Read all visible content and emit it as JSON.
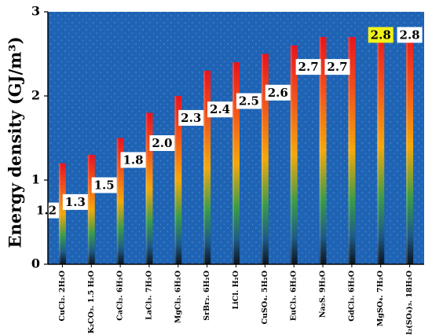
{
  "chart_data": {
    "type": "bar",
    "title": "",
    "xlabel": "",
    "ylabel": "Energy density (GJ/m³)",
    "ylim": [
      0,
      3
    ],
    "yticks": [
      "0",
      "1",
      "2",
      "3"
    ],
    "categories": [
      "CuCl₂. 2H₂O",
      "K₂CO₃. 1.5 H₂O",
      "CaCl₂. 6H₂O",
      "LaCl₃. 7H₂O",
      "MgCl₂. 6H₂O",
      "SrBr₂. 6H₂O",
      "LiCl. H₂O",
      "CuSO₄. 5H₂O",
      "EuCl₃. 6H₂O",
      "Na₂S. 9H₂O",
      "GdCl₃. 6H₂O",
      "MgSO₄. 7H₂O",
      "Al₂(SO₄)₃. 18H₂O"
    ],
    "values": [
      1.2,
      1.3,
      1.5,
      1.8,
      2.0,
      2.3,
      2.4,
      2.5,
      2.6,
      2.7,
      2.7,
      2.8,
      2.8
    ],
    "data_labels": [
      "1.2",
      "1.3",
      "1.5",
      "1.8",
      "2.0",
      "2.3",
      "2.4",
      "2.5",
      "2.6",
      "2.7",
      "2.7",
      "2.8",
      "2.8"
    ],
    "grid": false,
    "legend": "none",
    "colors": {
      "background": "#1e63b4",
      "bar_top": "#e8141e",
      "bar_mid": "#f5a80a",
      "bar_low": "#3a9a4a",
      "bar_bottom": "#0a1420",
      "label_box": "#ffffff",
      "label_box_highlight": "#f2f21a"
    },
    "highlighted_labels": [
      11
    ]
  }
}
